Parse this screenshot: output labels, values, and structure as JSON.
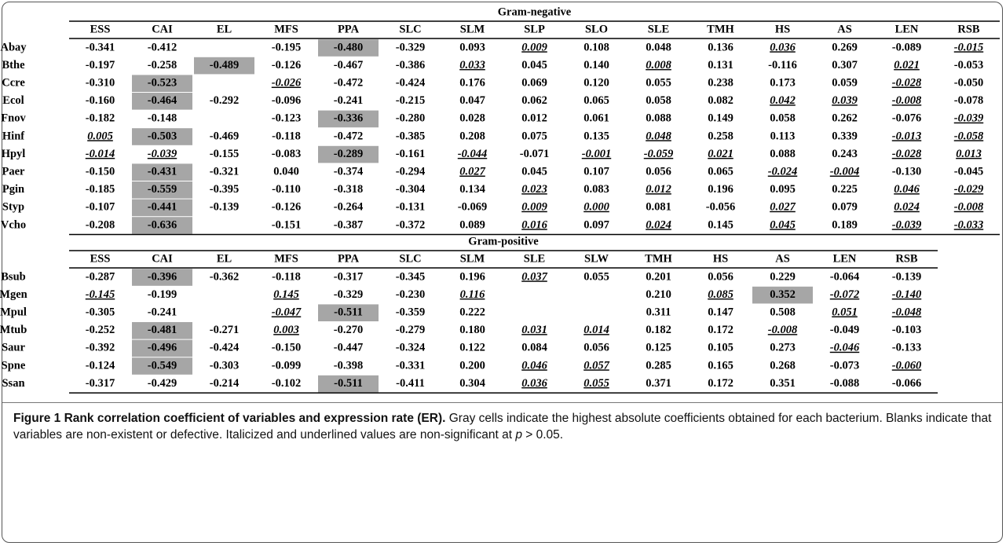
{
  "tables": [
    {
      "title": "Gram-negative",
      "columns": [
        "ESS",
        "CAI",
        "EL",
        "MFS",
        "PPA",
        "SLC",
        "SLM",
        "SLP",
        "SLO",
        "SLE",
        "TMH",
        "HS",
        "AS",
        "LEN",
        "RSB"
      ],
      "rows": [
        {
          "label": "Abay",
          "cells": [
            "-0.341",
            "-0.412",
            null,
            "-0.195",
            {
              "text": "-0.480",
              "highlight": true
            },
            "-0.329",
            "0.093",
            {
              "text": "0.009",
              "non_significant": true
            },
            "0.108",
            "0.048",
            "0.136",
            {
              "text": "0.036",
              "non_significant": true
            },
            "0.269",
            "-0.089",
            {
              "text": "-0.015",
              "non_significant": true
            }
          ]
        },
        {
          "label": "Bthe",
          "cells": [
            "-0.197",
            "-0.258",
            {
              "text": "-0.489",
              "highlight": true
            },
            "-0.126",
            "-0.467",
            "-0.386",
            {
              "text": "0.033",
              "non_significant": true
            },
            "0.045",
            "0.140",
            {
              "text": "0.008",
              "non_significant": true
            },
            "0.131",
            "-0.116",
            "0.307",
            {
              "text": "0.021",
              "non_significant": true
            },
            "-0.053"
          ]
        },
        {
          "label": "Ccre",
          "cells": [
            "-0.310",
            {
              "text": "-0.523",
              "highlight": true
            },
            null,
            {
              "text": "-0.026",
              "non_significant": true
            },
            "-0.472",
            "-0.424",
            "0.176",
            "0.069",
            "0.120",
            "0.055",
            "0.238",
            "0.173",
            "0.059",
            {
              "text": "-0.028",
              "non_significant": true
            },
            "-0.050"
          ]
        },
        {
          "label": "Ecol",
          "cells": [
            "-0.160",
            {
              "text": "-0.464",
              "highlight": true
            },
            "-0.292",
            "-0.096",
            "-0.241",
            "-0.215",
            "0.047",
            "0.062",
            "0.065",
            "0.058",
            "0.082",
            {
              "text": "0.042",
              "non_significant": true
            },
            {
              "text": "0.039",
              "non_significant": true
            },
            {
              "text": "-0.008",
              "non_significant": true
            },
            "-0.078"
          ]
        },
        {
          "label": "Fnov",
          "cells": [
            "-0.182",
            "-0.148",
            null,
            "-0.123",
            {
              "text": "-0.336",
              "highlight": true
            },
            "-0.280",
            "0.028",
            "0.012",
            "0.061",
            "0.088",
            "0.149",
            "0.058",
            "0.262",
            "-0.076",
            {
              "text": "-0.039",
              "non_significant": true
            }
          ]
        },
        {
          "label": "Hinf",
          "cells": [
            {
              "text": "0.005",
              "non_significant": true
            },
            {
              "text": "-0.503",
              "highlight": true
            },
            "-0.469",
            "-0.118",
            "-0.472",
            "-0.385",
            "0.208",
            "0.075",
            "0.135",
            {
              "text": "0.048",
              "non_significant": true
            },
            "0.258",
            "0.113",
            "0.339",
            {
              "text": "-0.013",
              "non_significant": true
            },
            {
              "text": "-0.058",
              "non_significant": true
            }
          ]
        },
        {
          "label": "Hpyl",
          "cells": [
            {
              "text": "-0.014",
              "non_significant": true
            },
            {
              "text": "-0.039",
              "non_significant": true
            },
            "-0.155",
            "-0.083",
            {
              "text": "-0.289",
              "highlight": true
            },
            "-0.161",
            {
              "text": "-0.044",
              "non_significant": true
            },
            "-0.071",
            {
              "text": "-0.001",
              "non_significant": true
            },
            {
              "text": "-0.059",
              "non_significant": true
            },
            {
              "text": "0.021",
              "non_significant": true
            },
            "0.088",
            "0.243",
            {
              "text": "-0.028",
              "non_significant": true
            },
            {
              "text": "0.013",
              "non_significant": true
            }
          ]
        },
        {
          "label": "Paer",
          "cells": [
            "-0.150",
            {
              "text": "-0.431",
              "highlight": true
            },
            "-0.321",
            "0.040",
            "-0.374",
            "-0.294",
            {
              "text": "0.027",
              "non_significant": true
            },
            "0.045",
            "0.107",
            "0.056",
            "0.065",
            {
              "text": "-0.024",
              "non_significant": true
            },
            {
              "text": "-0.004",
              "non_significant": true
            },
            "-0.130",
            "-0.045"
          ]
        },
        {
          "label": "Pgin",
          "cells": [
            "-0.185",
            {
              "text": "-0.559",
              "highlight": true
            },
            "-0.395",
            "-0.110",
            "-0.318",
            "-0.304",
            "0.134",
            {
              "text": "0.023",
              "non_significant": true
            },
            "0.083",
            {
              "text": "0.012",
              "non_significant": true
            },
            "0.196",
            "0.095",
            "0.225",
            {
              "text": "0.046",
              "non_significant": true
            },
            {
              "text": "-0.029",
              "non_significant": true
            }
          ]
        },
        {
          "label": "Styp",
          "cells": [
            "-0.107",
            {
              "text": "-0.441",
              "highlight": true
            },
            "-0.139",
            "-0.126",
            "-0.264",
            "-0.131",
            "-0.069",
            {
              "text": "0.009",
              "non_significant": true
            },
            {
              "text": "0.000",
              "non_significant": true
            },
            "0.081",
            "-0.056",
            {
              "text": "0.027",
              "non_significant": true
            },
            "0.079",
            {
              "text": "0.024",
              "non_significant": true
            },
            {
              "text": "-0.008",
              "non_significant": true
            }
          ]
        },
        {
          "label": "Vcho",
          "cells": [
            "-0.208",
            {
              "text": "-0.636",
              "highlight": true
            },
            null,
            "-0.151",
            "-0.387",
            "-0.372",
            "0.089",
            {
              "text": "0.016",
              "non_significant": true
            },
            "0.097",
            {
              "text": "0.024",
              "non_significant": true
            },
            "0.145",
            {
              "text": "0.045",
              "non_significant": true
            },
            "0.189",
            {
              "text": "-0.039",
              "non_significant": true
            },
            {
              "text": "-0.033",
              "non_significant": true
            }
          ]
        }
      ]
    },
    {
      "title": "Gram-positive",
      "columns": [
        "ESS",
        "CAI",
        "EL",
        "MFS",
        "PPA",
        "SLC",
        "SLM",
        "SLE",
        "SLW",
        "TMH",
        "HS",
        "AS",
        "LEN",
        "RSB"
      ],
      "rows": [
        {
          "label": "Bsub",
          "cells": [
            "-0.287",
            {
              "text": "-0.396",
              "highlight": true
            },
            "-0.362",
            "-0.118",
            "-0.317",
            "-0.345",
            "0.196",
            {
              "text": "0.037",
              "non_significant": true
            },
            "0.055",
            "0.201",
            "0.056",
            "0.229",
            "-0.064",
            "-0.139"
          ]
        },
        {
          "label": "Mgen",
          "cells": [
            {
              "text": "-0.145",
              "non_significant": true
            },
            "-0.199",
            null,
            {
              "text": "0.145",
              "non_significant": true
            },
            "-0.329",
            "-0.230",
            {
              "text": "0.116",
              "non_significant": true
            },
            null,
            null,
            "0.210",
            {
              "text": "0.085",
              "non_significant": true
            },
            {
              "text": "0.352",
              "highlight": true
            },
            {
              "text": "-0.072",
              "non_significant": true
            },
            {
              "text": "-0.140",
              "non_significant": true
            }
          ]
        },
        {
          "label": "Mpul",
          "cells": [
            "-0.305",
            "-0.241",
            null,
            {
              "text": "-0.047",
              "non_significant": true
            },
            {
              "text": "-0.511",
              "highlight": true
            },
            "-0.359",
            "0.222",
            null,
            null,
            "0.311",
            "0.147",
            "0.508",
            {
              "text": "0.051",
              "non_significant": true
            },
            {
              "text": "-0.048",
              "non_significant": true
            }
          ]
        },
        {
          "label": "Mtub",
          "cells": [
            "-0.252",
            {
              "text": "-0.481",
              "highlight": true
            },
            "-0.271",
            {
              "text": "0.003",
              "non_significant": true
            },
            "-0.270",
            "-0.279",
            "0.180",
            {
              "text": "0.031",
              "non_significant": true
            },
            {
              "text": "0.014",
              "non_significant": true
            },
            "0.182",
            "0.172",
            {
              "text": "-0.008",
              "non_significant": true
            },
            "-0.049",
            "-0.103"
          ]
        },
        {
          "label": "Saur",
          "cells": [
            "-0.392",
            {
              "text": "-0.496",
              "highlight": true
            },
            "-0.424",
            "-0.150",
            "-0.447",
            "-0.324",
            "0.122",
            "0.084",
            "0.056",
            "0.125",
            "0.105",
            "0.273",
            {
              "text": "-0.046",
              "non_significant": true
            },
            "-0.133"
          ]
        },
        {
          "label": "Spne",
          "cells": [
            "-0.124",
            {
              "text": "-0.549",
              "highlight": true
            },
            "-0.303",
            "-0.099",
            "-0.398",
            "-0.331",
            "0.200",
            {
              "text": "0.046",
              "non_significant": true
            },
            {
              "text": "0.057",
              "non_significant": true
            },
            "0.285",
            "0.165",
            "0.268",
            "-0.073",
            {
              "text": "-0.060",
              "non_significant": true
            }
          ]
        },
        {
          "label": "Ssan",
          "cells": [
            "-0.317",
            "-0.429",
            "-0.214",
            "-0.102",
            {
              "text": "-0.511",
              "highlight": true
            },
            "-0.411",
            "0.304",
            {
              "text": "0.036",
              "non_significant": true
            },
            {
              "text": "0.055",
              "non_significant": true
            },
            "0.371",
            "0.172",
            "0.351",
            "-0.088",
            "-0.066"
          ]
        }
      ]
    }
  ],
  "caption": {
    "label": "Figure 1",
    "title": "Rank correlation coefficient of variables and expression rate (ER).",
    "text": "Gray cells indicate the highest absolute coefficients obtained for each bacterium. Blanks indicate that variables are non-existent or defective. Italicized and underlined values are non-significant at",
    "p_symbol": "p",
    "threshold": "> 0.05."
  }
}
